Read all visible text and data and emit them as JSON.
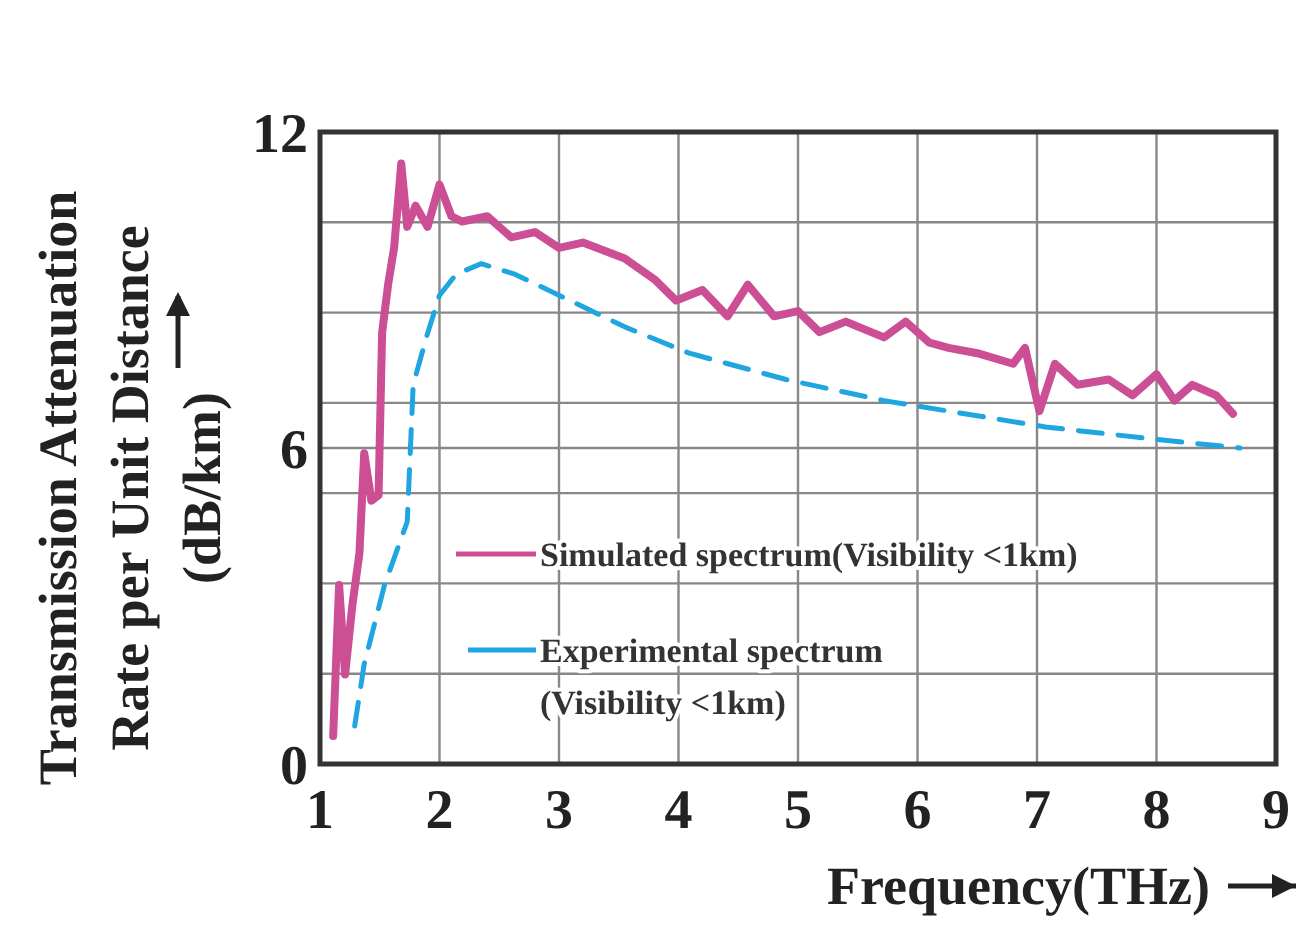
{
  "chart_data": {
    "type": "line",
    "xlabel": "Frequency(THz)",
    "ylabel": "Transmission Attenuation Rate per Unit Distance (dB/km)",
    "xlim": [
      1,
      9
    ],
    "xticks": [
      1,
      2,
      3,
      4,
      5,
      6,
      7,
      8,
      9
    ],
    "ylim": [
      0,
      12
    ],
    "yticks": [
      0,
      {
        "value": 1.714,
        "label": null
      },
      {
        "value": 3.429,
        "label": null
      },
      {
        "value": 5.143,
        "label": null
      },
      6,
      {
        "value": 6.857,
        "label": null
      },
      {
        "value": 8.571,
        "label": null
      },
      {
        "value": 10.286,
        "label": null
      },
      12
    ],
    "grid": true,
    "legend": "bottom right",
    "series": [
      {
        "name": "Simulated spectrum(Visibility <1km)",
        "color": "#cc4f95",
        "line_style": "solid",
        "x": [
          1.11,
          1.16,
          1.21,
          1.27,
          1.33,
          1.37,
          1.43,
          1.49,
          1.52,
          1.57,
          1.62,
          1.68,
          1.73,
          1.8,
          1.9,
          2.0,
          2.1,
          2.19,
          2.4,
          2.6,
          2.8,
          3.0,
          3.2,
          3.55,
          3.8,
          3.98,
          4.2,
          4.41,
          4.58,
          4.8,
          5.0,
          5.18,
          5.4,
          5.72,
          5.9,
          6.1,
          6.26,
          6.5,
          6.8,
          6.9,
          7.02,
          7.15,
          7.34,
          7.6,
          7.8,
          8.0,
          8.15,
          8.3,
          8.5,
          8.64
        ],
        "values": [
          0.53,
          3.4,
          1.7,
          3.0,
          4.0,
          5.9,
          5.0,
          5.1,
          8.2,
          9.1,
          9.8,
          11.4,
          10.2,
          10.6,
          10.2,
          11.0,
          10.4,
          10.3,
          10.4,
          10.0,
          10.1,
          9.8,
          9.9,
          9.6,
          9.2,
          8.8,
          9.0,
          8.5,
          9.1,
          8.5,
          8.6,
          8.2,
          8.4,
          8.1,
          8.4,
          8.0,
          7.9,
          7.8,
          7.6,
          7.9,
          6.7,
          7.6,
          7.2,
          7.3,
          7.0,
          7.4,
          6.9,
          7.2,
          7.0,
          6.65
        ]
      },
      {
        "name": "Experimental spectrum (Visibility <1km)",
        "color": "#1fa6e0",
        "line_style": "dashed",
        "x": [
          1.29,
          1.37,
          1.54,
          1.73,
          1.78,
          1.89,
          2.0,
          2.14,
          2.35,
          2.63,
          3.0,
          3.55,
          4.09,
          4.9,
          5.72,
          5.99,
          7.07,
          8.05,
          8.7
        ],
        "values": [
          0.72,
          1.9,
          3.4,
          4.6,
          7.2,
          8.1,
          8.9,
          9.3,
          9.5,
          9.3,
          8.9,
          8.3,
          7.8,
          7.3,
          6.9,
          6.8,
          6.4,
          6.15,
          6.0
        ]
      }
    ]
  }
}
